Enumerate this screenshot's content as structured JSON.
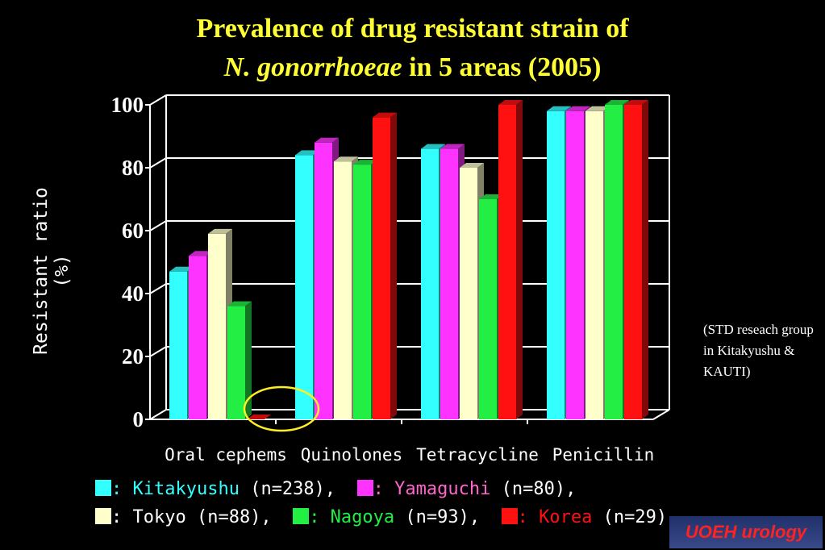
{
  "title": {
    "line1": "Prevalence of drug resistant strain of",
    "line2_italic": "N. gonorrhoeae",
    "line2_rest": " in 5 areas (2005)"
  },
  "note": "(STD reseach group in Kitakyushu & KAUTI)",
  "badge": "UOEH  urology",
  "legend": {
    "items": [
      {
        "label": ": Kitakyushu",
        "n": " (n=238),",
        "color": "#33ffff"
      },
      {
        "label": ": Yamaguchi",
        "n": " (n=80),",
        "color": "#ff33ff"
      },
      {
        "label": ": Tokyo",
        "n": " (n=88),",
        "color": "#ffffcc"
      },
      {
        "label": ": Nagoya",
        "n": " (n=93),",
        "color": "#22ee44"
      },
      {
        "label": ": Korea",
        "n": " (n=29)",
        "color": "#ff1111"
      }
    ]
  },
  "chart_data": {
    "type": "bar",
    "title": "Prevalence of drug resistant strain of N. gonorrhoeae in 5 areas (2005)",
    "ylabel": "Resistant ratio (%)",
    "xlabel": "",
    "ylim": [
      0,
      100
    ],
    "yticks": [
      "0",
      "20",
      "40",
      "60",
      "80",
      "100"
    ],
    "categories": [
      "Oral cephems",
      "Quinolones",
      "Tetracycline",
      "Penicillin"
    ],
    "grid": true,
    "series": [
      {
        "name": "Kitakyushu",
        "color": "#33ffff",
        "values": [
          47,
          84,
          86,
          98
        ]
      },
      {
        "name": "Yamaguchi",
        "color": "#ff33ff",
        "values": [
          52,
          88,
          86,
          98
        ]
      },
      {
        "name": "Tokyo",
        "color": "#ffffcc",
        "values": [
          59,
          82,
          80,
          98
        ]
      },
      {
        "name": "Nagoya",
        "color": "#22ee44",
        "values": [
          36,
          81,
          70,
          100
        ]
      },
      {
        "name": "Korea",
        "color": "#ff1111",
        "values": [
          0,
          96,
          100,
          100
        ]
      }
    ]
  }
}
